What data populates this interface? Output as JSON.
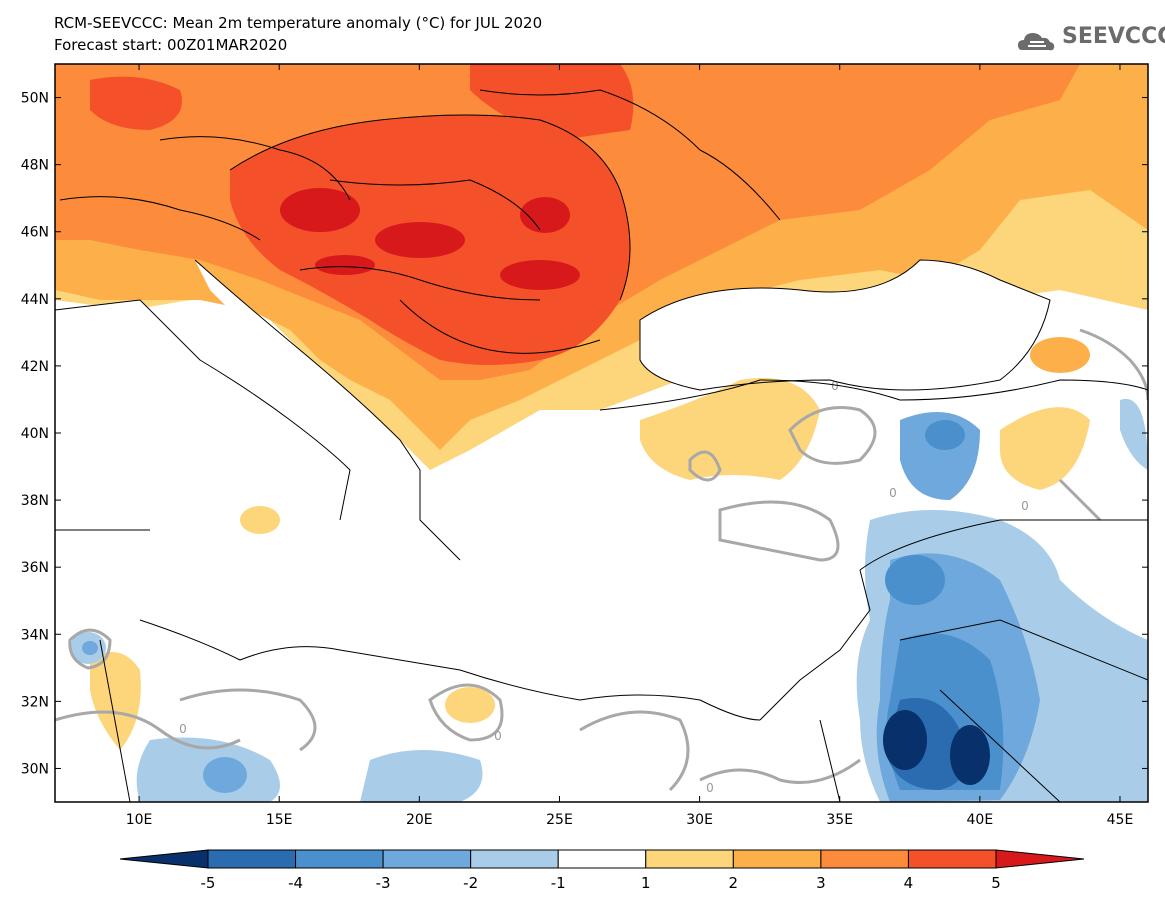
{
  "header": {
    "title": "RCM-SEEVCCC: Mean 2m temperature anomaly (°C) for JUL 2020",
    "subtitle": "Forecast start: 00Z01MAR2020"
  },
  "logo": {
    "text": "SEEVCCC",
    "icon": "cloud-icon"
  },
  "map": {
    "lon_range": [
      7,
      46
    ],
    "lat_range": [
      29,
      51
    ],
    "lon_ticks": [
      "10E",
      "15E",
      "20E",
      "25E",
      "30E",
      "35E",
      "40E",
      "45E"
    ],
    "lat_ticks": [
      "50N",
      "48N",
      "46N",
      "44N",
      "42N",
      "40N",
      "38N",
      "36N",
      "34N",
      "32N",
      "30N"
    ],
    "contour_label": "0"
  },
  "colorbar": {
    "labels": [
      "-5",
      "-4",
      "-3",
      "-2",
      "-1",
      "1",
      "2",
      "3",
      "4",
      "5"
    ],
    "colors": [
      "#08306b",
      "#2b6cb0",
      "#4a90cd",
      "#6fa8dc",
      "#a9cde8",
      "#ffffff",
      "#fdd57a",
      "#fdb04a",
      "#fd8b3c",
      "#f4502a",
      "#d7191c"
    ]
  }
}
